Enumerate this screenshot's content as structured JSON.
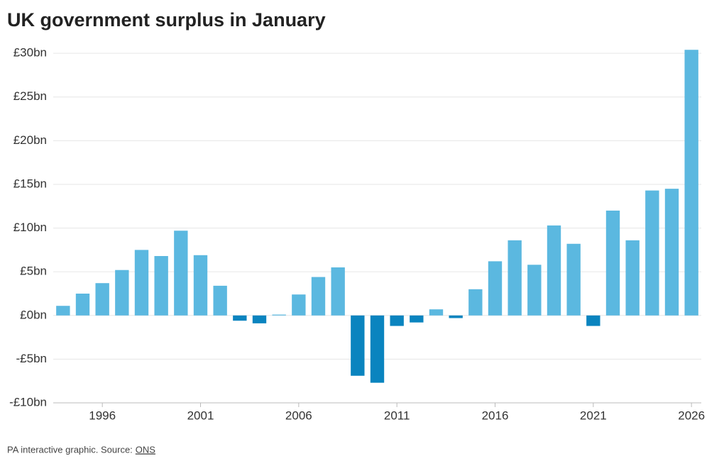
{
  "chart_data": {
    "type": "bar",
    "title": "UK government surplus in January",
    "x": [
      1994,
      1995,
      1996,
      1997,
      1998,
      1999,
      2000,
      2001,
      2002,
      2003,
      2004,
      2005,
      2006,
      2007,
      2008,
      2009,
      2010,
      2011,
      2012,
      2013,
      2014,
      2015,
      2016,
      2017,
      2018,
      2019,
      2020,
      2021,
      2022,
      2023,
      2024,
      2025,
      2026
    ],
    "values": [
      1.1,
      2.5,
      3.7,
      5.2,
      7.5,
      6.8,
      9.7,
      6.9,
      3.4,
      -0.6,
      -0.9,
      0.1,
      2.4,
      4.4,
      5.5,
      -6.9,
      -7.7,
      -1.2,
      -0.8,
      0.7,
      -0.3,
      3.0,
      6.2,
      8.6,
      5.8,
      10.3,
      8.2,
      -1.2,
      12.0,
      8.6,
      14.3,
      14.5,
      30.4
    ],
    "color": "#5bb8e0",
    "negative_color": "#0a84bf",
    "xlim": [
      1993.5,
      2026.5
    ],
    "xticks": [
      1996,
      2001,
      2006,
      2011,
      2016,
      2021,
      2026
    ],
    "ylim": [
      -10,
      30.5
    ],
    "yticks": [
      {
        "value": -10,
        "label": "-£10bn"
      },
      {
        "value": -5,
        "label": "-£5bn"
      },
      {
        "value": 0,
        "label": "£0bn"
      },
      {
        "value": 5,
        "label": "£5bn"
      },
      {
        "value": 10,
        "label": "£10bn"
      },
      {
        "value": 15,
        "label": "£15bn"
      },
      {
        "value": 20,
        "label": "£20bn"
      },
      {
        "value": 25,
        "label": "£25bn"
      },
      {
        "value": 30,
        "label": "£30bn"
      }
    ],
    "grid": true,
    "note": "PA interactive graphic. Source:",
    "source": "ONS"
  }
}
